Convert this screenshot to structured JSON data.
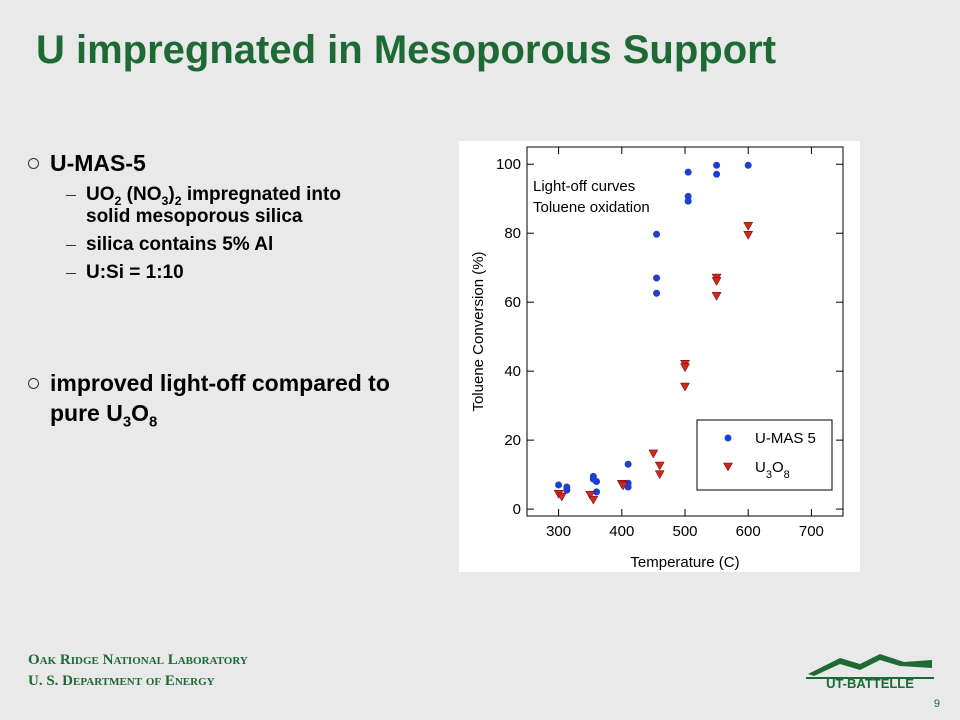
{
  "header": {
    "title": "U impregnated in Mesoporous Support"
  },
  "bullets": [
    {
      "text": "U-MAS-5",
      "subs": [
        "UO2 (NO3)2 impregnated into solid mesoporous silica",
        "silica contains 5% Al",
        "U:Si = 1:10"
      ]
    },
    {
      "text": "improved light-off compared to pure U3O8",
      "subs": []
    }
  ],
  "chart_data": {
    "type": "scatter",
    "annotation": [
      "Light-off curves",
      "Toluene oxidation"
    ],
    "xlabel": "Temperature (C)",
    "ylabel": "Toluene Conversion (%)",
    "xlim": [
      250,
      750
    ],
    "ylim": [
      -2,
      105
    ],
    "xticks": [
      300,
      400,
      500,
      600,
      700
    ],
    "yticks": [
      0,
      20,
      40,
      60,
      80,
      100
    ],
    "legend": "lower right",
    "series": [
      {
        "name": "U-MAS 5",
        "color": "#1f3fd0",
        "marker": "circle",
        "x": [
          300,
          313,
          313,
          355,
          355,
          360,
          360,
          410,
          410,
          410,
          455,
          455,
          455,
          505,
          505,
          505,
          550,
          550,
          600
        ],
        "values": [
          7,
          6.4,
          5.5,
          9.5,
          8.7,
          5,
          8,
          7.5,
          6.4,
          13,
          79.7,
          67,
          62.6,
          97.7,
          90.7,
          89.3,
          99.7,
          97.1,
          99.7
        ]
      },
      {
        "name": "U3O8",
        "color": "#d0281e",
        "marker": "triangle-down",
        "x": [
          300,
          305,
          350,
          355,
          400,
          402,
          450,
          460,
          460,
          500,
          500,
          500,
          550,
          550,
          550,
          600,
          600
        ],
        "values": [
          4.3,
          3.5,
          4,
          2.6,
          7.2,
          6.7,
          16,
          12.5,
          10,
          42,
          41,
          35.4,
          67,
          66,
          61.7,
          82,
          79.4
        ]
      }
    ]
  },
  "footer": {
    "lab": "Oak Ridge National Laboratory",
    "dept": "U. S. Department of Energy",
    "logo": "UT-BATTELLE",
    "page": "9"
  }
}
